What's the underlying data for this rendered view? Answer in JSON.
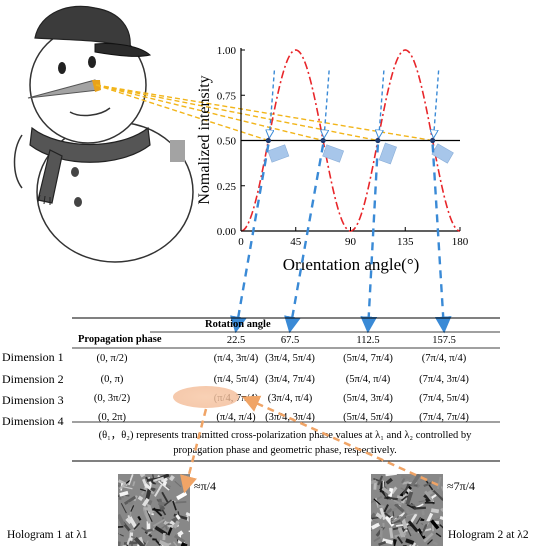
{
  "chart_data": {
    "type": "line",
    "xlabel": "Orientation angle(°)",
    "ylabel": "Nomalized intensity",
    "xlim": [
      0,
      180
    ],
    "ylim": [
      0,
      1.0
    ],
    "x_ticks": [
      "0",
      "45",
      "90",
      "135",
      "180"
    ],
    "y_ticks": [
      "0.00",
      "0.25",
      "0.50",
      "0.75",
      "1.00"
    ],
    "series": [
      {
        "style": "dash-dot",
        "color": "#e8262a",
        "function": "sin^2(2x)",
        "x": [
          0,
          22.5,
          45,
          67.5,
          90,
          112.5,
          135,
          157.5,
          180
        ],
        "y": [
          0,
          0.5,
          1,
          0.5,
          0,
          0.5,
          1,
          0.5,
          0
        ]
      },
      {
        "style": "solid",
        "color": "#000000",
        "x": [
          0,
          180
        ],
        "y": [
          0.5,
          0.5
        ]
      }
    ],
    "marked_points": [
      22.5,
      67.5,
      112.5,
      157.5
    ]
  },
  "table": {
    "header_rotation": "Rotation angle",
    "header_prop": "Propagation phase",
    "angles": [
      "22.5",
      "67.5",
      "112.5",
      "157.5"
    ],
    "rows": [
      {
        "dim": "Dimension 1",
        "prop": "(0, π/2)",
        "cells": [
          "(π/4, 3π/4)",
          "(3π/4, 5π/4)",
          "(5π/4, 7π/4)",
          "(7π/4, π/4)"
        ]
      },
      {
        "dim": "Dimension 2",
        "prop": "(0, π)",
        "cells": [
          "(π/4, 5π/4)",
          "(3π/4, 7π/4)",
          "(5π/4, π/4)",
          "(7π/4, 3π/4)"
        ]
      },
      {
        "dim": "Dimension 3",
        "prop": "(0, 3π/2)",
        "cells": [
          "(π/4, 7π/4)",
          "(3π/4, π/4)",
          "(5π/4, 3π/4)",
          "(7π/4, 5π/4)"
        ]
      },
      {
        "dim": "Dimension 4",
        "prop": "(0, 2π)",
        "cells": [
          "(π/4, π/4)",
          "(3π/4, 3π/4)",
          "(5π/4, 5π/4)",
          "(7π/4, 7π/4)"
        ]
      }
    ],
    "note_line1": "(θ₁，θ₂) represents transmitted cross-polarization phase values at λ₁ and λ₂ controlled by",
    "note_line2": "propagation phase and geometric phase, respectively."
  },
  "holograms": {
    "h1_label": "Hologram 1 at λ1",
    "h1_value": "≈π/4",
    "h2_label": "Hologram 2 at λ2",
    "h2_value": "≈7π/4"
  },
  "colors": {
    "curve": "#e8262a",
    "beam": "#f2b51a",
    "arrow_blue": "#3a8ad6",
    "arrow_orange": "#f0a466",
    "highlight": "#f3c7a8",
    "nanorod": "#a7c6ea"
  }
}
